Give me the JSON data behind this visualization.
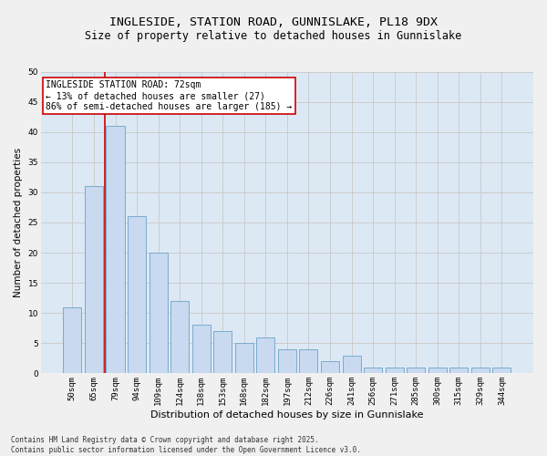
{
  "title_line1": "INGLESIDE, STATION ROAD, GUNNISLAKE, PL18 9DX",
  "title_line2": "Size of property relative to detached houses in Gunnislake",
  "xlabel": "Distribution of detached houses by size in Gunnislake",
  "ylabel": "Number of detached properties",
  "categories": [
    "50sqm",
    "65sqm",
    "79sqm",
    "94sqm",
    "109sqm",
    "124sqm",
    "138sqm",
    "153sqm",
    "168sqm",
    "182sqm",
    "197sqm",
    "212sqm",
    "226sqm",
    "241sqm",
    "256sqm",
    "271sqm",
    "285sqm",
    "300sqm",
    "315sqm",
    "329sqm",
    "344sqm"
  ],
  "values": [
    11,
    31,
    41,
    26,
    20,
    12,
    8,
    7,
    5,
    6,
    4,
    4,
    2,
    3,
    1,
    1,
    1,
    1,
    1,
    1,
    1
  ],
  "bar_color": "#c9d9f0",
  "bar_edge_color": "#7aabcc",
  "vline_color": "#cc0000",
  "annotation_text": "INGLESIDE STATION ROAD: 72sqm\n← 13% of detached houses are smaller (27)\n86% of semi-detached houses are larger (185) →",
  "annotation_box_color": "#ffffff",
  "annotation_box_edge": "#cc0000",
  "ylim": [
    0,
    50
  ],
  "yticks": [
    0,
    5,
    10,
    15,
    20,
    25,
    30,
    35,
    40,
    45,
    50
  ],
  "grid_color": "#cccccc",
  "plot_bg_color": "#dce9f5",
  "fig_bg_color": "#f0f0f0",
  "footnote": "Contains HM Land Registry data © Crown copyright and database right 2025.\nContains public sector information licensed under the Open Government Licence v3.0.",
  "title_fontsize": 9.5,
  "subtitle_fontsize": 8.5,
  "xlabel_fontsize": 8,
  "ylabel_fontsize": 7.5,
  "tick_fontsize": 6.5,
  "annotation_fontsize": 7,
  "footnote_fontsize": 5.5
}
